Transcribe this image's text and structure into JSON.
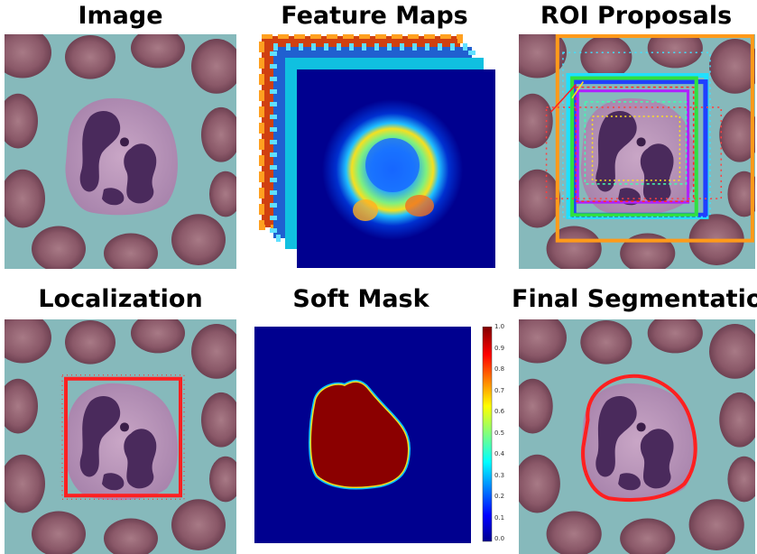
{
  "titles": {
    "image": "Image",
    "feature_maps": "Feature Maps",
    "roi_proposals": "ROI Proposals",
    "localization": "Localization",
    "soft_mask": "Soft Mask",
    "final_segmentation": "Final Segmentation"
  },
  "colorbar": {
    "ticks": [
      "1.0",
      "0.9",
      "0.8",
      "0.7",
      "0.6",
      "0.5",
      "0.4",
      "0.3",
      "0.2",
      "0.1",
      "0.0"
    ]
  },
  "colors": {
    "background_blue": "#7fb3b5",
    "rbc": "#8e5a6a",
    "cell_cytoplasm": "#b68fb8",
    "nucleus": "#4a2a5a",
    "box_red": "#ff2020",
    "mask_dark_red": "#8b0000",
    "mask_background": "#00008f"
  }
}
